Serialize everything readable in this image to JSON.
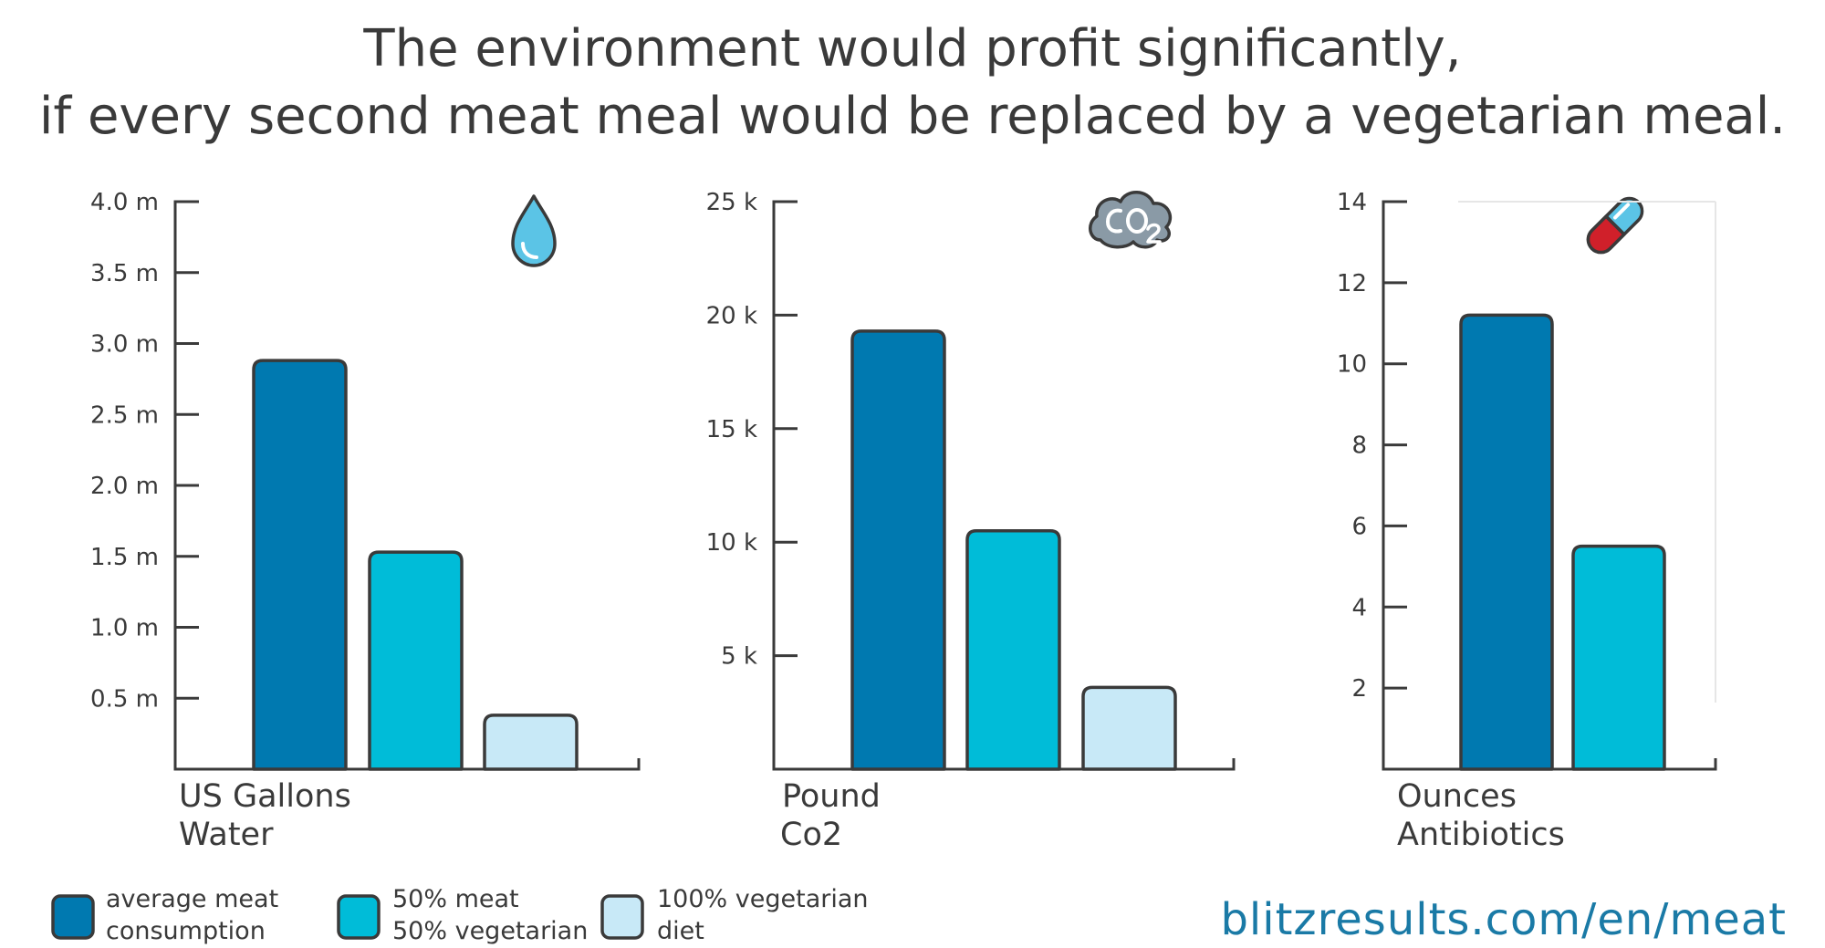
{
  "title": {
    "line1": "The environment would profit significantly,",
    "line2": "if every second meat meal would be replaced by a vegetarian meal."
  },
  "colors": {
    "average_meat": "#0079b0",
    "half_meat": "#00bcd8",
    "vegetarian": "#c8e9f7",
    "axis": "#3a3a3a",
    "source": "#1a7aa6"
  },
  "legend": [
    {
      "line1": "average meat",
      "line2": "consumption",
      "color": "#0079b0"
    },
    {
      "line1": "50% meat",
      "line2": "50% vegetarian",
      "color": "#00bcd8"
    },
    {
      "line1": "100% vegetarian",
      "line2": "diet",
      "color": "#c8e9f7"
    }
  ],
  "source": "blitzresults.com/en/meat",
  "chart_data": [
    {
      "type": "bar",
      "icon": "water-drop-icon",
      "unit_line1": "US Gallons",
      "unit_line2": "Water",
      "yticks": [
        0.5,
        1.0,
        1.5,
        2.0,
        2.5,
        3.0,
        3.5,
        4.0
      ],
      "ytick_labels": [
        "0.5 m",
        "1.0 m",
        "1.5 m",
        "2.0 m",
        "2.5 m",
        "3.0 m",
        "3.5 m",
        "4.0 m"
      ],
      "ylim": [
        0,
        4.0
      ],
      "grid": false,
      "series": [
        {
          "name": "average meat consumption",
          "value": 2.88
        },
        {
          "name": "50% meat 50% vegetarian",
          "value": 1.53
        },
        {
          "name": "100% vegetarian diet",
          "value": 0.38
        }
      ]
    },
    {
      "type": "bar",
      "icon": "co2-cloud-icon",
      "unit_line1": "Pound",
      "unit_line2": "Co2",
      "yticks": [
        5,
        10,
        15,
        20,
        25
      ],
      "ytick_labels": [
        "5 k",
        "10 k",
        "15 k",
        "20 k",
        "25 k"
      ],
      "ylim": [
        0,
        25
      ],
      "grid": false,
      "series": [
        {
          "name": "average meat consumption",
          "value": 19.3
        },
        {
          "name": "50% meat 50% vegetarian",
          "value": 10.5
        },
        {
          "name": "100% vegetarian diet",
          "value": 3.6
        }
      ]
    },
    {
      "type": "bar",
      "icon": "pill-icon",
      "unit_line1": "Ounces",
      "unit_line2": "Antibiotics",
      "yticks": [
        2,
        4,
        6,
        8,
        10,
        12,
        14
      ],
      "ytick_labels": [
        "2",
        "4",
        "6",
        "8",
        "10",
        "12",
        "14"
      ],
      "ylim": [
        0,
        14
      ],
      "grid": false,
      "series": [
        {
          "name": "average meat consumption",
          "value": 11.2
        },
        {
          "name": "50% meat 50% vegetarian",
          "value": 5.5
        },
        {
          "name": "100% vegetarian diet",
          "value": 0
        }
      ]
    }
  ]
}
